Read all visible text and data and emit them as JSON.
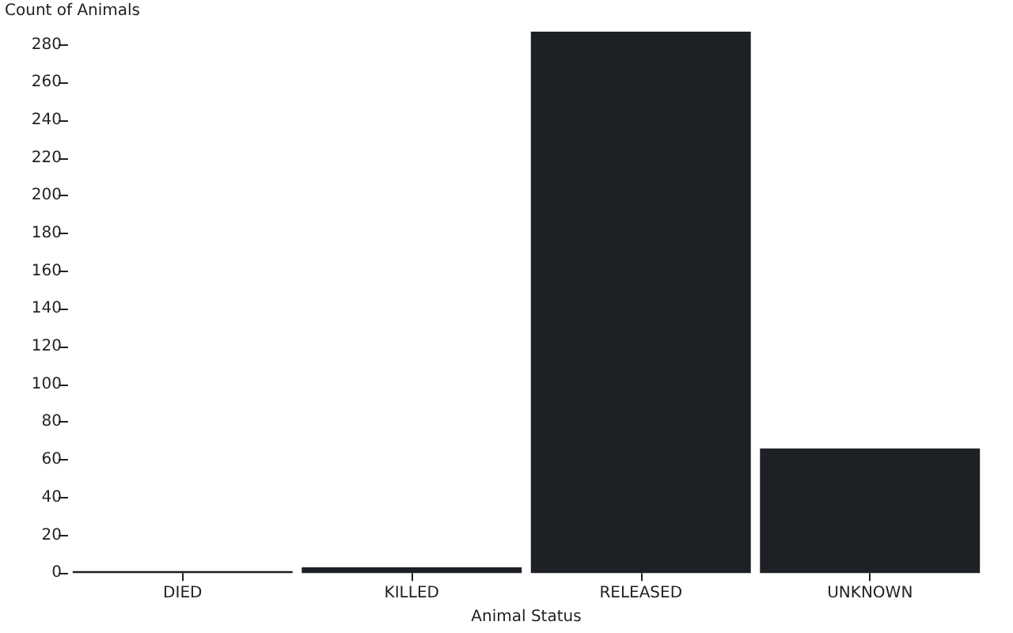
{
  "chart_data": {
    "type": "bar",
    "xlabel": "Animal Status",
    "ylabel": "Count of Animals",
    "categories": [
      "DIED",
      "KILLED",
      "RELEASED",
      "UNKNOWN"
    ],
    "values": [
      1,
      3,
      287,
      66
    ],
    "color": "#1d2024",
    "ylim": [
      0,
      287
    ],
    "yticks": [
      0,
      20,
      40,
      60,
      80,
      100,
      120,
      140,
      160,
      180,
      200,
      220,
      240,
      260,
      280
    ],
    "grid": false
  }
}
